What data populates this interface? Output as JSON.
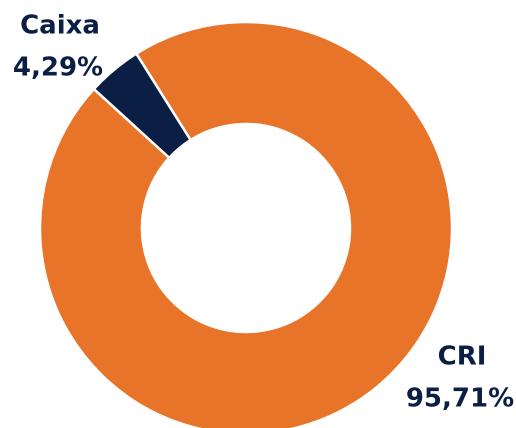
{
  "chart_data": {
    "type": "donut",
    "categories": [
      "Caixa",
      "CRI"
    ],
    "values": [
      4.29,
      95.71
    ],
    "value_labels": [
      "4,29%",
      "95,71%"
    ],
    "colors": [
      "#0b1f45",
      "#e8742a"
    ]
  }
}
